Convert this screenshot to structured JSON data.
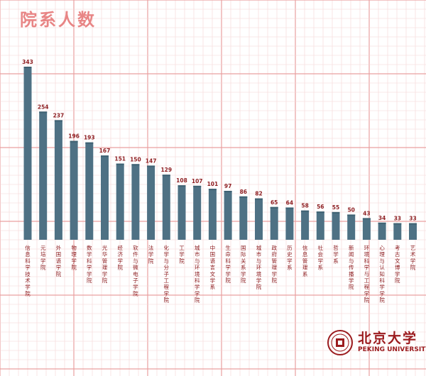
{
  "header": {
    "title": "院系人数"
  },
  "logo": {
    "name_cn": "北京大学",
    "name_en": "PEKING UNIVERSITY"
  },
  "colors": {
    "bar": "#4e7184",
    "bar_top": "#3f6273",
    "label": "#8e1f22",
    "title": "#e88585",
    "grid_major": "#e9a0a0",
    "grid_minor": "#f4d5d5"
  },
  "chart_data": {
    "type": "bar",
    "title": "院系人数",
    "categories": [
      "信息科学技术学院",
      "元培学院",
      "外国语学院",
      "物理学院",
      "数学科学学院",
      "光华管理学院",
      "经济学院",
      "软件与微电子学院",
      "法学院",
      "化学与分子工程学院",
      "工学院",
      "城市与环境科学学院",
      "中国语言文学系",
      "生命科学学院",
      "国际关系学院",
      "城市与环境学院",
      "政府管理学院",
      "历史学系",
      "信息管理系",
      "社会学系",
      "哲学系",
      "新闻与传播学院",
      "环境科学与工程学院",
      "心理与认知科学学院",
      "考古文博学院",
      "艺术学院"
    ],
    "values": [
      343,
      254,
      237,
      196,
      193,
      167,
      151,
      150,
      147,
      129,
      108,
      107,
      101,
      97,
      86,
      82,
      65,
      64,
      58,
      56,
      55,
      50,
      43,
      34,
      33,
      33
    ],
    "ylim": [
      0,
      360
    ],
    "grid": true
  }
}
